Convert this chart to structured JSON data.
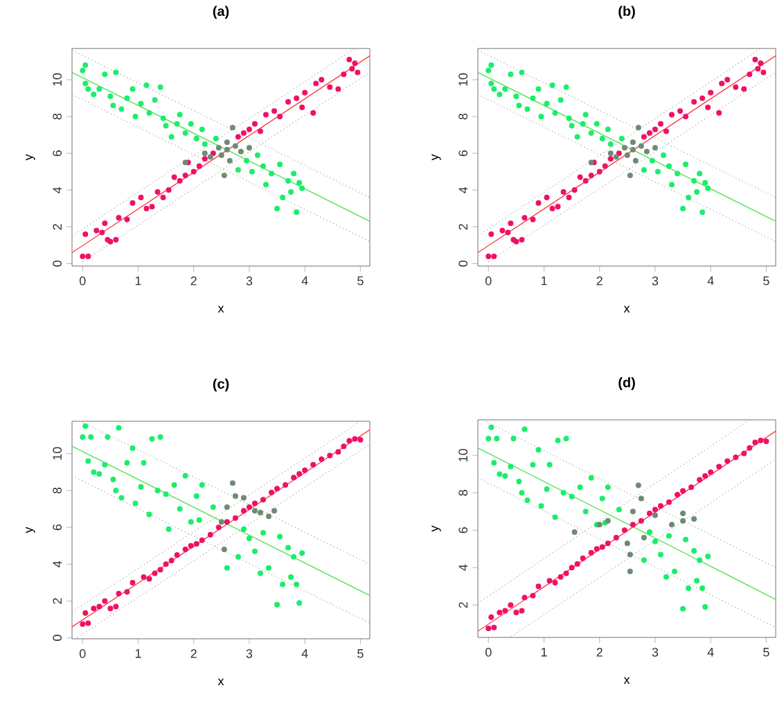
{
  "chart_data": [
    {
      "type": "scatter",
      "title": "(a)",
      "xlabel": "x",
      "ylabel": "y",
      "xlim": [
        -0.19,
        5.17
      ],
      "ylim": [
        -0.13,
        11.7
      ],
      "xticks": [
        0,
        1,
        2,
        3,
        4,
        5
      ],
      "yticks": [
        0,
        2,
        4,
        6,
        8,
        10
      ],
      "series": [
        {
          "type": "line",
          "color": "#9e9e9e",
          "line_style": "dotted",
          "marker": "none",
          "x": [
            -0.19,
            4.9
          ],
          "values": [
            1.5,
            11.7
          ]
        },
        {
          "type": "line",
          "color": "#9e9e9e",
          "line_style": "dotted",
          "marker": "none",
          "x": [
            0,
            5.17
          ],
          "values": [
            0.1,
            10.4
          ]
        },
        {
          "type": "line",
          "color": "#9e9e9e",
          "line_style": "dotted",
          "marker": "none",
          "x": [
            -0.19,
            5.17
          ],
          "values": [
            11.6,
            3.6
          ]
        },
        {
          "type": "line",
          "color": "#9e9e9e",
          "line_style": "dotted",
          "marker": "none",
          "x": [
            -0.19,
            5.17
          ],
          "values": [
            9.2,
            1.2
          ]
        },
        {
          "color": "#ee1166",
          "marker": "circle",
          "x": [
            0.0,
            0.1,
            0.05,
            0.25,
            0.35,
            0.4,
            0.45,
            0.5,
            0.6,
            0.65,
            0.8,
            0.9,
            1.05,
            1.15,
            1.25,
            1.35,
            1.45,
            1.55,
            1.65,
            1.75,
            1.85,
            1.9,
            2.0,
            2.1,
            2.2,
            2.35,
            2.8,
            2.9,
            3.0,
            3.1,
            3.2,
            3.3,
            3.45,
            3.55,
            3.7,
            3.85,
            3.95,
            4.0,
            4.15,
            4.2,
            4.3,
            4.45,
            4.6,
            4.7,
            4.8,
            4.85,
            4.95,
            4.9
          ],
          "values": [
            0.4,
            0.4,
            1.6,
            1.8,
            1.7,
            2.2,
            1.3,
            1.2,
            1.3,
            2.5,
            2.4,
            3.3,
            3.6,
            3.0,
            3.1,
            3.9,
            3.6,
            4.0,
            4.7,
            4.5,
            4.8,
            5.5,
            5.0,
            5.3,
            5.7,
            6.0,
            6.9,
            7.1,
            7.3,
            7.6,
            7.2,
            8.1,
            8.3,
            8.0,
            8.8,
            9.0,
            8.5,
            9.3,
            8.2,
            9.8,
            10.0,
            9.6,
            9.5,
            10.3,
            11.1,
            10.6,
            10.4,
            10.9
          ]
        },
        {
          "color": "#1aee6a",
          "marker": "circle",
          "x": [
            0.0,
            0.05,
            0.05,
            0.1,
            0.2,
            0.3,
            0.4,
            0.5,
            0.55,
            0.6,
            0.7,
            0.8,
            0.9,
            0.95,
            1.05,
            1.15,
            1.2,
            1.3,
            1.4,
            1.45,
            1.5,
            1.6,
            1.7,
            1.75,
            1.85,
            1.95,
            2.05,
            2.15,
            2.2,
            2.4,
            2.8,
            2.95,
            3.05,
            3.15,
            3.25,
            3.3,
            3.4,
            3.5,
            3.55,
            3.6,
            3.7,
            3.75,
            3.8,
            3.85,
            3.9,
            3.95
          ],
          "values": [
            10.5,
            10.8,
            9.8,
            9.5,
            9.2,
            9.5,
            10.3,
            9.1,
            8.6,
            10.4,
            8.4,
            9.0,
            9.5,
            8.0,
            8.7,
            9.7,
            8.2,
            8.9,
            9.6,
            7.9,
            7.5,
            6.9,
            7.6,
            8.1,
            7.1,
            7.6,
            6.8,
            7.3,
            6.5,
            6.8,
            5.1,
            5.6,
            5.0,
            5.9,
            5.3,
            4.3,
            4.9,
            3.0,
            5.4,
            3.6,
            4.5,
            3.9,
            4.9,
            2.8,
            4.4,
            4.1
          ]
        },
        {
          "color": "#6e8b74",
          "marker": "circle",
          "x": [
            1.85,
            2.2,
            2.3,
            2.45,
            2.5,
            2.55,
            2.6,
            2.6,
            2.65,
            2.7,
            2.75,
            2.85,
            3.0
          ],
          "values": [
            5.5,
            6.0,
            5.8,
            6.3,
            5.9,
            4.8,
            6.2,
            6.6,
            5.6,
            7.4,
            6.4,
            6.1,
            6.3
          ]
        },
        {
          "type": "line",
          "color": "#ff2020",
          "line_style": "solid",
          "marker": "none",
          "x": [
            -0.19,
            5.17
          ],
          "values": [
            0.6,
            11.3
          ]
        },
        {
          "type": "line",
          "color": "#40e040",
          "line_style": "solid",
          "marker": "none",
          "x": [
            -0.19,
            5.17
          ],
          "values": [
            10.4,
            2.3
          ]
        }
      ]
    },
    {
      "type": "scatter",
      "title": "(b)",
      "xlabel": "x",
      "ylabel": "y",
      "xlim": [
        -0.19,
        5.17
      ],
      "ylim": [
        -0.13,
        11.7
      ],
      "xticks": [
        0,
        1,
        2,
        3,
        4,
        5
      ],
      "yticks": [
        0,
        2,
        4,
        6,
        8,
        10
      ],
      "series": [
        {
          "type": "line",
          "color": "#9e9e9e",
          "line_style": "dotted",
          "marker": "none",
          "x": [
            -0.19,
            4.9
          ],
          "values": [
            1.5,
            11.7
          ]
        },
        {
          "type": "line",
          "color": "#9e9e9e",
          "line_style": "dotted",
          "marker": "none",
          "x": [
            0,
            5.17
          ],
          "values": [
            0.1,
            10.4
          ]
        },
        {
          "type": "line",
          "color": "#9e9e9e",
          "line_style": "dotted",
          "marker": "none",
          "x": [
            -0.19,
            5.17
          ],
          "values": [
            11.6,
            3.6
          ]
        },
        {
          "type": "line",
          "color": "#9e9e9e",
          "line_style": "dotted",
          "marker": "none",
          "x": [
            -0.19,
            5.17
          ],
          "values": [
            9.2,
            1.2
          ]
        },
        {
          "color": "#ee1166",
          "marker": "circle",
          "x": [
            0.0,
            0.1,
            0.05,
            0.25,
            0.35,
            0.4,
            0.45,
            0.5,
            0.6,
            0.65,
            0.8,
            0.9,
            1.05,
            1.15,
            1.25,
            1.35,
            1.45,
            1.55,
            1.65,
            1.75,
            1.85,
            1.9,
            2.0,
            2.1,
            2.2,
            2.35,
            2.8,
            2.9,
            3.0,
            3.1,
            3.2,
            3.3,
            3.45,
            3.55,
            3.7,
            3.85,
            3.95,
            4.0,
            4.15,
            4.2,
            4.3,
            4.45,
            4.6,
            4.7,
            4.8,
            4.85,
            4.95,
            4.9
          ],
          "values": [
            0.4,
            0.4,
            1.6,
            1.8,
            1.7,
            2.2,
            1.3,
            1.2,
            1.3,
            2.5,
            2.4,
            3.3,
            3.6,
            3.0,
            3.1,
            3.9,
            3.6,
            4.0,
            4.7,
            4.5,
            4.8,
            5.5,
            5.0,
            5.3,
            5.7,
            6.0,
            6.9,
            7.1,
            7.3,
            7.6,
            7.2,
            8.1,
            8.3,
            8.0,
            8.8,
            9.0,
            8.5,
            9.3,
            8.2,
            9.8,
            10.0,
            9.6,
            9.5,
            10.3,
            11.1,
            10.6,
            10.4,
            10.9
          ]
        },
        {
          "color": "#1aee6a",
          "marker": "circle",
          "x": [
            0.0,
            0.05,
            0.05,
            0.1,
            0.2,
            0.3,
            0.4,
            0.5,
            0.55,
            0.6,
            0.7,
            0.8,
            0.9,
            0.95,
            1.05,
            1.15,
            1.2,
            1.3,
            1.4,
            1.45,
            1.5,
            1.6,
            1.7,
            1.75,
            1.85,
            1.95,
            2.05,
            2.15,
            2.2,
            2.4,
            2.8,
            2.95,
            3.05,
            3.15,
            3.25,
            3.3,
            3.4,
            3.5,
            3.55,
            3.6,
            3.7,
            3.75,
            3.8,
            3.85,
            3.9,
            3.95
          ],
          "values": [
            10.5,
            10.8,
            9.8,
            9.5,
            9.2,
            9.5,
            10.3,
            9.1,
            8.6,
            10.4,
            8.4,
            9.0,
            9.5,
            8.0,
            8.7,
            9.7,
            8.2,
            8.9,
            9.6,
            7.9,
            7.5,
            6.9,
            7.6,
            8.1,
            7.1,
            7.6,
            6.8,
            7.3,
            6.5,
            6.8,
            5.1,
            5.6,
            5.0,
            5.9,
            5.3,
            4.3,
            4.9,
            3.0,
            5.4,
            3.6,
            4.5,
            3.9,
            4.9,
            2.8,
            4.4,
            4.1
          ]
        },
        {
          "color": "#6e8b74",
          "marker": "circle",
          "x": [
            1.85,
            2.2,
            2.3,
            2.45,
            2.5,
            2.55,
            2.6,
            2.6,
            2.65,
            2.7,
            2.75,
            2.85,
            3.0
          ],
          "values": [
            5.5,
            6.0,
            5.8,
            6.3,
            5.9,
            4.8,
            6.2,
            6.6,
            5.6,
            7.4,
            6.4,
            6.1,
            6.3
          ]
        },
        {
          "type": "line",
          "color": "#ff2020",
          "line_style": "solid",
          "marker": "none",
          "x": [
            -0.19,
            5.17
          ],
          "values": [
            0.6,
            11.3
          ]
        },
        {
          "type": "line",
          "color": "#40e040",
          "line_style": "solid",
          "marker": "none",
          "x": [
            -0.19,
            5.17
          ],
          "values": [
            10.4,
            2.3
          ]
        }
      ]
    },
    {
      "type": "scatter",
      "title": "(c)",
      "xlabel": "x",
      "ylabel": "y",
      "xlim": [
        -0.19,
        5.17
      ],
      "ylim": [
        -0.05,
        11.76
      ],
      "xticks": [
        0,
        1,
        2,
        3,
        4,
        5
      ],
      "yticks": [
        0,
        2,
        4,
        6,
        8,
        10
      ],
      "series": [
        {
          "type": "line",
          "color": "#9e9e9e",
          "line_style": "dotted",
          "marker": "none",
          "x": [
            -0.19,
            4.98
          ],
          "values": [
            1.4,
            11.7
          ]
        },
        {
          "type": "line",
          "color": "#9e9e9e",
          "line_style": "dotted",
          "marker": "none",
          "x": [
            -0.1,
            5.17
          ],
          "values": [
            0.0,
            10.5
          ]
        },
        {
          "type": "line",
          "color": "#9e9e9e",
          "line_style": "dotted",
          "marker": "none",
          "x": [
            0,
            5.17
          ],
          "values": [
            11.7,
            4.0
          ]
        },
        {
          "type": "line",
          "color": "#9e9e9e",
          "line_style": "dotted",
          "marker": "none",
          "x": [
            -0.19,
            5.17
          ],
          "values": [
            8.8,
            0.8
          ]
        },
        {
          "color": "#ee1166",
          "marker": "circle",
          "x": [
            0.0,
            0.1,
            0.05,
            0.2,
            0.3,
            0.4,
            0.5,
            0.6,
            0.65,
            0.8,
            0.9,
            1.1,
            1.2,
            1.3,
            1.4,
            1.5,
            1.6,
            1.7,
            1.85,
            1.95,
            2.05,
            2.15,
            2.3,
            2.45,
            2.6,
            2.75,
            2.9,
            3.0,
            3.1,
            3.25,
            3.4,
            3.5,
            3.65,
            3.8,
            3.9,
            4.0,
            4.15,
            4.3,
            4.45,
            4.6,
            4.7,
            4.8,
            4.9,
            5.0
          ],
          "values": [
            0.75,
            0.8,
            1.35,
            1.6,
            1.7,
            2.0,
            1.6,
            1.7,
            2.4,
            2.5,
            3.0,
            3.3,
            3.2,
            3.5,
            3.7,
            4.0,
            4.2,
            4.5,
            4.8,
            5.0,
            5.1,
            5.3,
            5.6,
            6.0,
            6.3,
            6.5,
            6.9,
            7.1,
            7.3,
            7.5,
            7.9,
            8.1,
            8.3,
            8.7,
            8.9,
            9.1,
            9.4,
            9.7,
            9.9,
            10.1,
            10.4,
            10.7,
            10.8,
            10.75
          ]
        },
        {
          "color": "#1aee6a",
          "marker": "circle",
          "x": [
            0.0,
            0.05,
            0.1,
            0.15,
            0.2,
            0.3,
            0.4,
            0.45,
            0.55,
            0.6,
            0.65,
            0.7,
            0.8,
            0.9,
            0.95,
            1.05,
            1.1,
            1.2,
            1.25,
            1.35,
            1.4,
            1.5,
            1.55,
            1.65,
            1.75,
            1.85,
            1.95,
            2.05,
            2.1,
            2.15,
            2.35,
            2.6,
            2.8,
            2.9,
            3.0,
            3.1,
            3.2,
            3.25,
            3.35,
            3.5,
            3.55,
            3.6,
            3.7,
            3.75,
            3.8,
            3.9,
            3.85,
            3.95
          ],
          "values": [
            10.9,
            11.5,
            9.6,
            10.9,
            9.0,
            8.9,
            9.4,
            10.9,
            8.6,
            8.0,
            11.4,
            7.6,
            9.5,
            10.3,
            7.3,
            8.2,
            9.5,
            6.7,
            10.8,
            8.0,
            10.9,
            7.8,
            5.9,
            8.3,
            7.0,
            8.8,
            6.3,
            7.7,
            6.4,
            8.3,
            7.1,
            3.8,
            4.4,
            5.9,
            5.4,
            4.7,
            3.5,
            5.7,
            3.8,
            1.8,
            5.5,
            2.9,
            4.9,
            3.3,
            4.4,
            1.9,
            2.9,
            4.6
          ]
        },
        {
          "color": "#6e8b74",
          "marker": "circle",
          "x": [
            2.5,
            2.55,
            2.6,
            2.7,
            2.75,
            2.9,
            3.1,
            3.2,
            3.35,
            3.45
          ],
          "values": [
            6.3,
            4.8,
            7.1,
            8.4,
            7.7,
            7.6,
            6.9,
            6.8,
            6.6,
            6.9
          ]
        },
        {
          "type": "line",
          "color": "#ff2020",
          "line_style": "solid",
          "marker": "none",
          "x": [
            -0.19,
            5.17
          ],
          "values": [
            0.6,
            11.3
          ]
        },
        {
          "type": "line",
          "color": "#40e040",
          "line_style": "solid",
          "marker": "none",
          "x": [
            -0.19,
            5.17
          ],
          "values": [
            10.4,
            2.3
          ]
        }
      ]
    },
    {
      "type": "scatter",
      "title": "(d)",
      "xlabel": "x",
      "ylabel": "y",
      "xlim": [
        -0.19,
        5.17
      ],
      "ylim": [
        0.27,
        11.9
      ],
      "xticks": [
        0,
        1,
        2,
        3,
        4,
        5
      ],
      "yticks": [
        2,
        4,
        6,
        8,
        10
      ],
      "series": [
        {
          "type": "line",
          "color": "#9e9e9e",
          "line_style": "dotted",
          "marker": "none",
          "x": [
            -0.19,
            4.7
          ],
          "values": [
            2.1,
            11.9
          ]
        },
        {
          "type": "line",
          "color": "#9e9e9e",
          "line_style": "dotted",
          "marker": "none",
          "x": [
            0.4,
            5.17
          ],
          "values": [
            0.3,
            9.8
          ]
        },
        {
          "type": "line",
          "color": "#9e9e9e",
          "line_style": "dotted",
          "marker": "none",
          "x": [
            -0.1,
            5.17
          ],
          "values": [
            11.9,
            4.0
          ]
        },
        {
          "type": "line",
          "color": "#9e9e9e",
          "line_style": "dotted",
          "marker": "none",
          "x": [
            -0.19,
            5.17
          ],
          "values": [
            8.8,
            0.8
          ]
        },
        {
          "color": "#ee1166",
          "marker": "circle",
          "x": [
            0.0,
            0.1,
            0.05,
            0.2,
            0.3,
            0.4,
            0.5,
            0.6,
            0.65,
            0.8,
            0.9,
            1.1,
            1.2,
            1.3,
            1.4,
            1.5,
            1.6,
            1.7,
            1.85,
            1.95,
            2.05,
            2.15,
            2.3,
            2.45,
            2.6,
            2.75,
            2.9,
            3.0,
            3.1,
            3.25,
            3.4,
            3.5,
            3.65,
            3.8,
            3.9,
            4.0,
            4.15,
            4.3,
            4.45,
            4.6,
            4.7,
            4.8,
            4.9,
            5.0
          ],
          "values": [
            0.75,
            0.8,
            1.35,
            1.6,
            1.7,
            2.0,
            1.6,
            1.7,
            2.4,
            2.5,
            3.0,
            3.3,
            3.2,
            3.5,
            3.7,
            4.0,
            4.2,
            4.5,
            4.8,
            5.0,
            5.1,
            5.3,
            5.6,
            6.0,
            6.3,
            6.5,
            6.9,
            7.1,
            7.3,
            7.5,
            7.9,
            8.1,
            8.3,
            8.7,
            8.9,
            9.1,
            9.4,
            9.7,
            9.9,
            10.1,
            10.4,
            10.7,
            10.8,
            10.75
          ]
        },
        {
          "color": "#1aee6a",
          "marker": "circle",
          "x": [
            0.0,
            0.05,
            0.1,
            0.15,
            0.2,
            0.3,
            0.4,
            0.45,
            0.55,
            0.6,
            0.65,
            0.7,
            0.8,
            0.9,
            0.95,
            1.05,
            1.1,
            1.2,
            1.25,
            1.35,
            1.4,
            1.5,
            1.65,
            1.75,
            1.85,
            1.95,
            2.05,
            2.1,
            2.15,
            2.35,
            2.8,
            2.9,
            3.0,
            3.1,
            3.2,
            3.25,
            3.35,
            3.5,
            3.55,
            3.6,
            3.7,
            3.75,
            3.8,
            3.85,
            3.9,
            3.95
          ],
          "values": [
            10.9,
            11.5,
            9.6,
            10.9,
            9.0,
            8.9,
            9.4,
            10.9,
            8.6,
            8.0,
            11.4,
            7.6,
            9.5,
            10.3,
            7.3,
            8.2,
            9.5,
            6.7,
            10.8,
            8.0,
            10.9,
            7.8,
            8.3,
            7.0,
            8.8,
            6.3,
            7.7,
            6.4,
            8.3,
            7.1,
            4.4,
            5.9,
            5.4,
            4.7,
            3.5,
            5.7,
            3.8,
            1.8,
            5.5,
            2.9,
            4.9,
            3.3,
            4.4,
            2.9,
            1.9,
            4.6
          ]
        },
        {
          "color": "#6e8b74",
          "marker": "circle",
          "x": [
            1.55,
            2.0,
            2.15,
            2.5,
            2.55,
            2.55,
            2.6,
            2.7,
            2.75,
            2.8,
            3.0,
            3.3,
            3.5,
            3.5,
            3.7
          ],
          "values": [
            5.9,
            6.3,
            6.5,
            5.3,
            4.7,
            3.8,
            7.0,
            8.4,
            7.7,
            5.6,
            6.8,
            6.3,
            6.5,
            6.9,
            6.6
          ]
        },
        {
          "type": "line",
          "color": "#ff2020",
          "line_style": "solid",
          "marker": "none",
          "x": [
            -0.19,
            5.17
          ],
          "values": [
            0.6,
            11.3
          ]
        },
        {
          "type": "line",
          "color": "#40e040",
          "line_style": "solid",
          "marker": "none",
          "x": [
            -0.19,
            5.17
          ],
          "values": [
            10.4,
            2.3
          ]
        }
      ]
    }
  ]
}
